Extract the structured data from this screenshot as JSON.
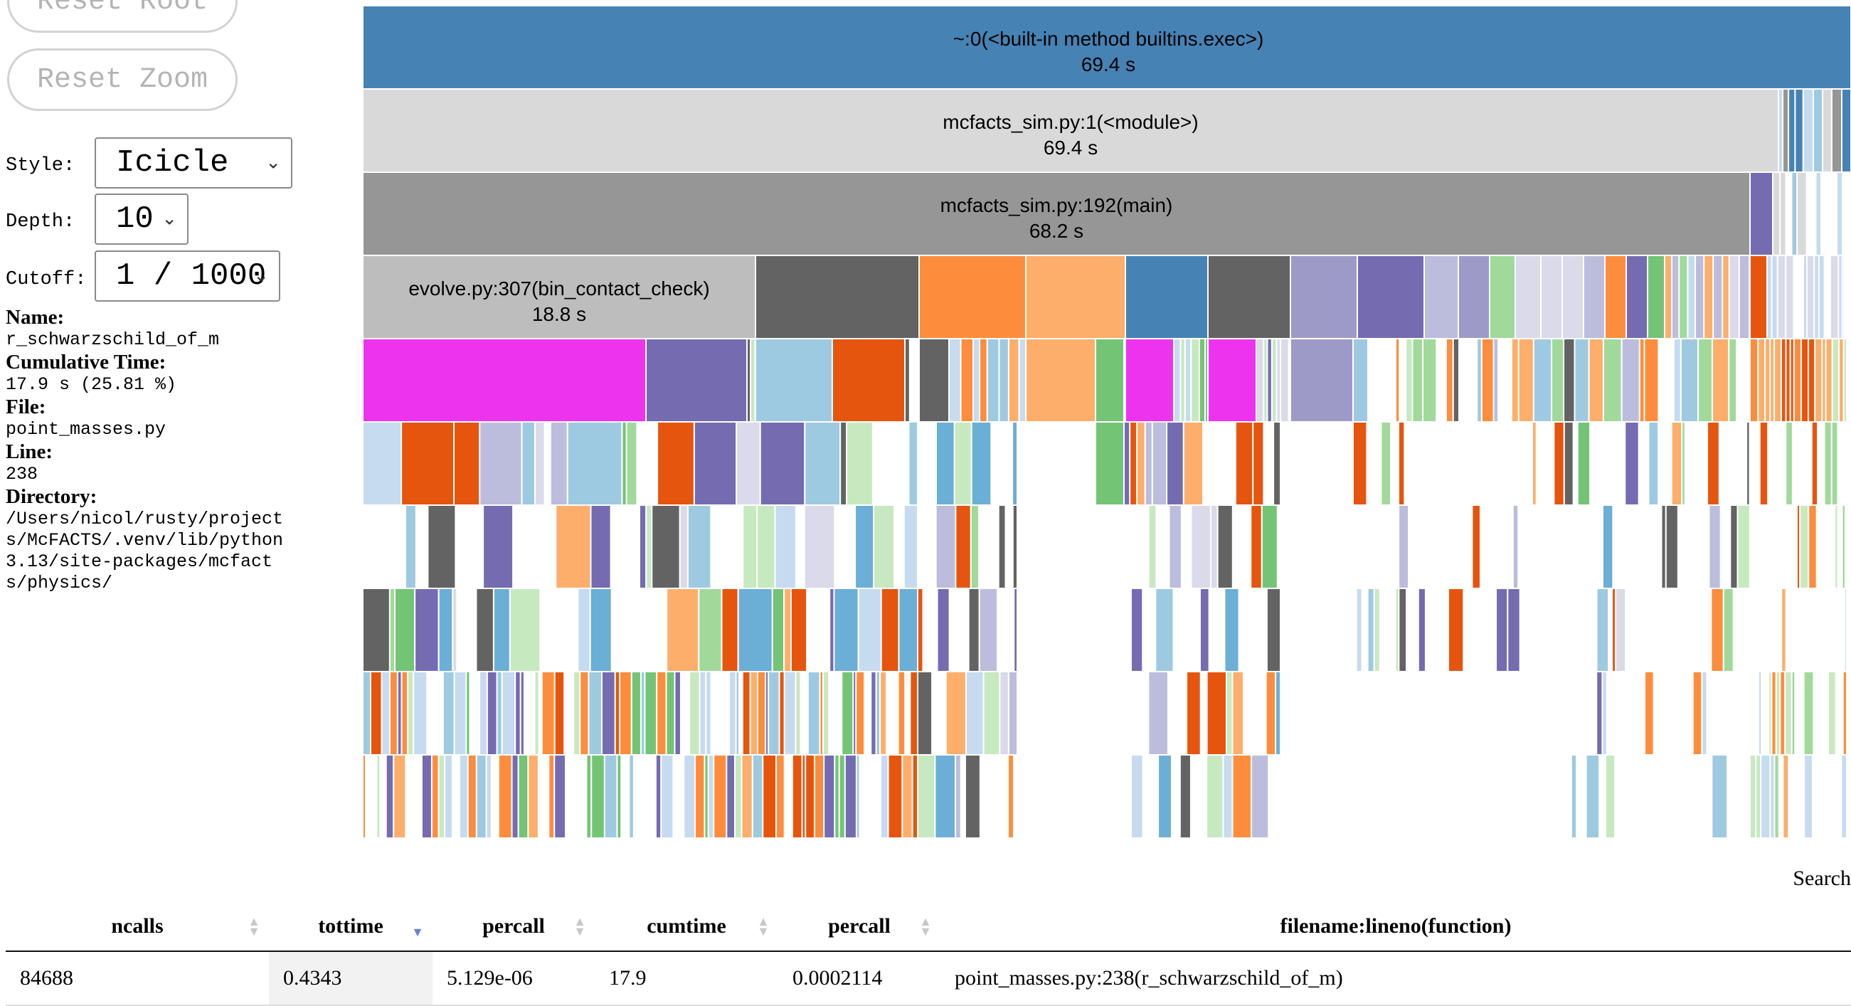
{
  "controls": {
    "reset_root_label": "Reset Root",
    "reset_zoom_label": "Reset Zoom",
    "style_label": "Style:",
    "style_value": "Icicle",
    "depth_label": "Depth:",
    "depth_value": "10",
    "cutoff_label": "Cutoff:",
    "cutoff_value": "1 / 1000"
  },
  "info": {
    "name_label": "Name:",
    "name_value": "r_schwarzschild_of_m",
    "cumulative_label": "Cumulative Time:",
    "cumulative_value": "17.9 s (25.81 %)",
    "file_label": "File:",
    "file_value": "point_masses.py",
    "line_label": "Line:",
    "line_value": "238",
    "directory_label": "Directory:",
    "directory_value": "/Users/nicol/rusty/projects/McFACTS/.venv/lib/python3.13/site-packages/mcfacts/physics/"
  },
  "flame": {
    "colors": [
      "#4682b4",
      "#d9d9d9",
      "#969696",
      "#bdbdbd",
      "#636363",
      "#fd8d3c",
      "#fdae6b",
      "#9e9ac8",
      "#756bb1",
      "#bcbddc",
      "#dadaeb",
      "#a1d99b",
      "#74c476",
      "#c7e9c0",
      "#e6550d",
      "#ee33ee",
      "#9ecae1",
      "#c6dbef",
      "#6baed6",
      "#e7e4f0"
    ],
    "nodes": [
      {
        "name": "~:0(<built-in method builtins.exec>)",
        "time": "69.4 s"
      },
      {
        "name": "mcfacts_sim.py:1(<module>)",
        "time": "69.4 s"
      },
      {
        "name": "mcfacts_sim.py:192(main)",
        "time": "68.2 s"
      },
      {
        "name": "evolve.py:307(bin_contact_check)",
        "time": "18.8 s"
      }
    ]
  },
  "search_label": "Search",
  "table": {
    "headers": [
      "ncalls",
      "tottime",
      "percall",
      "cumtime",
      "percall",
      "filename:lineno(function)"
    ],
    "rows": [
      [
        "84688",
        "0.4343",
        "5.129e-06",
        "17.9",
        "0.0002114",
        "point_masses.py:238(r_schwarzschild_of_m)"
      ]
    ]
  }
}
